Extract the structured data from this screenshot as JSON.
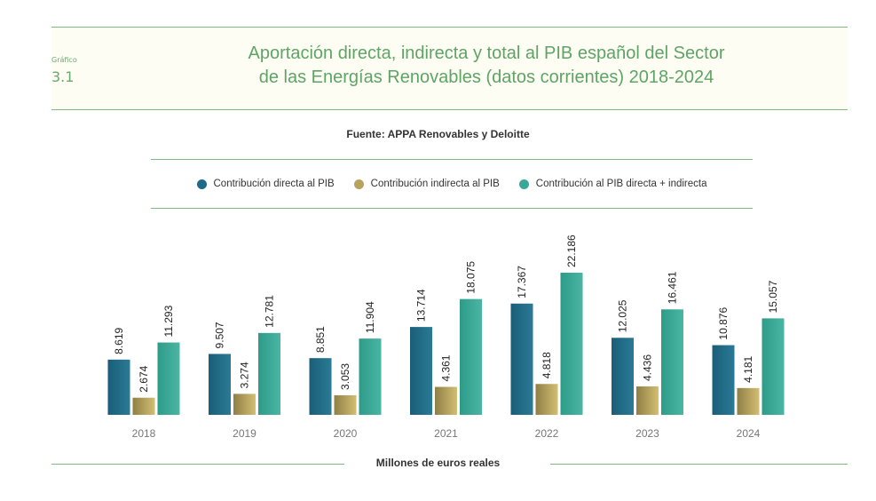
{
  "header": {
    "label": "Gráfico",
    "number": "3.1",
    "title_line1": "Aportación directa, indirecta y total al PIB español del Sector",
    "title_line2": "de las Energías Renovables (datos corrientes) 2018-2024"
  },
  "source": "Fuente: APPA Renovables y Deloitte",
  "footer": "Millones de euros reales",
  "chart_data": {
    "type": "bar",
    "title": "Aportación directa, indirecta y total al PIB español del Sector de las Energías Renovables (datos corrientes) 2018-2024",
    "xlabel": "Millones de euros reales",
    "ylabel": "",
    "legend_position": "top",
    "grid": false,
    "categories": [
      "2018",
      "2019",
      "2020",
      "2021",
      "2022",
      "2023",
      "2024"
    ],
    "series": [
      {
        "name": "Contribución directa al PIB",
        "color": "#1f6a86",
        "values": [
          8619,
          9507,
          8851,
          13714,
          17367,
          12025,
          10876
        ],
        "labels": [
          "8.619",
          "9.507",
          "8.851",
          "13.714",
          "17.367",
          "12.025",
          "10.876"
        ]
      },
      {
        "name": "Contribución indirecta al PIB",
        "color": "#b5a35e",
        "values": [
          2674,
          3274,
          3053,
          4361,
          4818,
          4436,
          4181
        ],
        "labels": [
          "2.674",
          "3.274",
          "3.053",
          "4.361",
          "4.818",
          "4.436",
          "4.181"
        ]
      },
      {
        "name": "Contribución al PIB directa + indirecta",
        "color": "#3aa896",
        "values": [
          11293,
          12781,
          11904,
          18075,
          22186,
          16461,
          15057
        ],
        "labels": [
          "11.293",
          "12.781",
          "11.904",
          "18.075",
          "22.186",
          "16.461",
          "15.057"
        ]
      }
    ]
  }
}
